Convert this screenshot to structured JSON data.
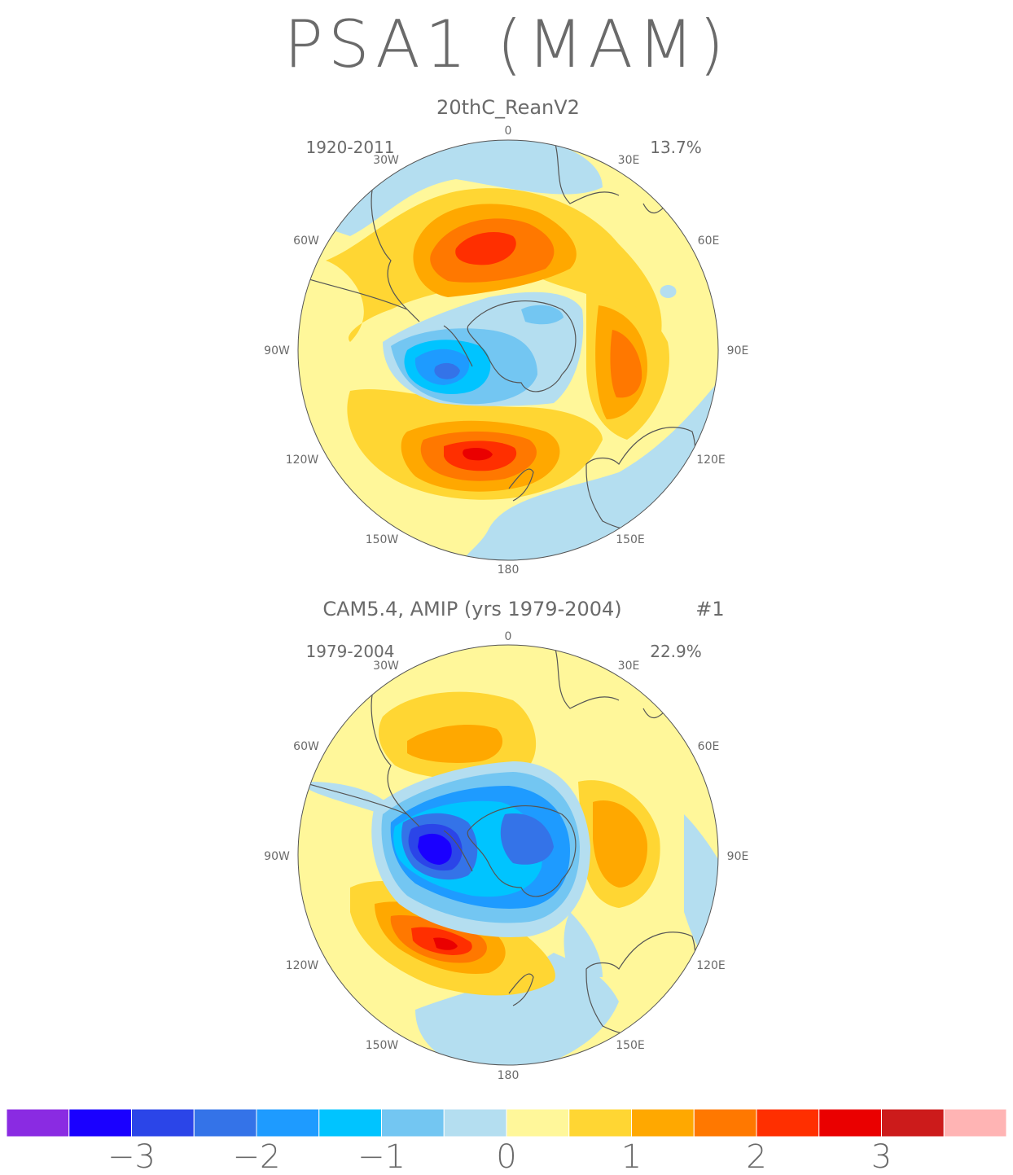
{
  "title": "PSA1 (MAM)",
  "panels": [
    {
      "name": "20thC_ReanV2",
      "years": "1920-2011",
      "percent": "13.7%",
      "number": ""
    },
    {
      "name": "CAM5.4, AMIP (yrs 1979-2004)",
      "years": "1979-2004",
      "percent": "22.9%",
      "number": "#1"
    }
  ],
  "longitude_labels": {
    "top": "0",
    "upper_left": "30W",
    "upper_right": "30E",
    "mid_left_upper": "60W",
    "mid_right_upper": "60E",
    "left": "90W",
    "right": "90E",
    "mid_left_lower": "120W",
    "mid_right_lower": "120E",
    "lower_left": "150W",
    "lower_right": "150E",
    "bottom": "180"
  },
  "colorbar": {
    "colors": [
      "#8a2be2",
      "#1a00ff",
      "#2b45e8",
      "#3473e8",
      "#1e9bff",
      "#00c4ff",
      "#73c6f2",
      "#b4def0",
      "#fff79a",
      "#ffd633",
      "#ffa800",
      "#ff7800",
      "#ff2f00",
      "#ea0000",
      "#cc1b1b",
      "#ffb4b4"
    ],
    "tick_labels": [
      "−3",
      "−2",
      "−1",
      "0",
      "1",
      "2",
      "3"
    ]
  },
  "colors": {
    "land_outline": "#555555",
    "text": "#6a6a6a"
  }
}
